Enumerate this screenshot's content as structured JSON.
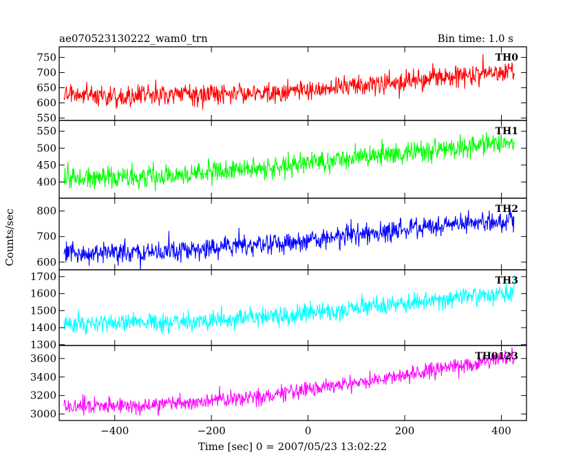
{
  "header": {
    "title": "ae070523130222_wam0_trn",
    "bin_time": "Bin time: 1.0 s"
  },
  "chart_data": {
    "type": "line",
    "ylabel": "Counts/sec",
    "xlabel": "Time [sec] 0 = 2007/05/23 13:02:22",
    "xlim": [
      -515,
      452
    ],
    "x_ticks": [
      -400,
      -200,
      0,
      200,
      400
    ],
    "x_tick_labels": [
      "−400",
      "−200",
      "0",
      "200",
      "400"
    ],
    "series_x_range": [
      -505,
      427
    ],
    "panels": [
      {
        "label": "TH0",
        "color": "#ff0000",
        "ylim": [
          542,
          785
        ],
        "y_ticks": [
          550,
          600,
          650,
          700,
          750
        ],
        "trend": [
          [
            -505,
            625
          ],
          [
            -300,
            625
          ],
          [
            -100,
            630
          ],
          [
            100,
            655
          ],
          [
            250,
            680
          ],
          [
            427,
            705
          ]
        ],
        "noise_sd": 22,
        "spike": 35
      },
      {
        "label": "TH1",
        "color": "#00ff00",
        "ylim": [
          352,
          582
        ],
        "y_ticks": [
          400,
          450,
          500,
          550
        ],
        "trend": [
          [
            -505,
            410
          ],
          [
            -300,
            418
          ],
          [
            -100,
            440
          ],
          [
            100,
            470
          ],
          [
            250,
            495
          ],
          [
            427,
            520
          ]
        ],
        "noise_sd": 20,
        "spike": 35
      },
      {
        "label": "TH2",
        "color": "#0000ff",
        "ylim": [
          570,
          850
        ],
        "y_ticks": [
          600,
          700,
          800
        ],
        "trend": [
          [
            -505,
            630
          ],
          [
            -300,
            640
          ],
          [
            -100,
            665
          ],
          [
            100,
            705
          ],
          [
            250,
            740
          ],
          [
            427,
            765
          ]
        ],
        "noise_sd": 25,
        "spike": 45
      },
      {
        "label": "TH3",
        "color": "#00ffff",
        "ylim": [
          1295,
          1740
        ],
        "y_ticks": [
          1300,
          1400,
          1500,
          1600,
          1700
        ],
        "trend": [
          [
            -505,
            1420
          ],
          [
            -300,
            1430
          ],
          [
            -100,
            1460
          ],
          [
            100,
            1510
          ],
          [
            250,
            1560
          ],
          [
            427,
            1610
          ]
        ],
        "noise_sd": 35,
        "spike": 60
      },
      {
        "label": "TH0123",
        "color": "#ff00ff",
        "ylim": [
          2930,
          3740
        ],
        "y_ticks": [
          3000,
          3200,
          3400,
          3600
        ],
        "trend": [
          [
            -505,
            3080
          ],
          [
            -300,
            3100
          ],
          [
            -100,
            3190
          ],
          [
            100,
            3330
          ],
          [
            250,
            3470
          ],
          [
            427,
            3620
          ]
        ],
        "noise_sd": 55,
        "spike": 90
      }
    ]
  }
}
